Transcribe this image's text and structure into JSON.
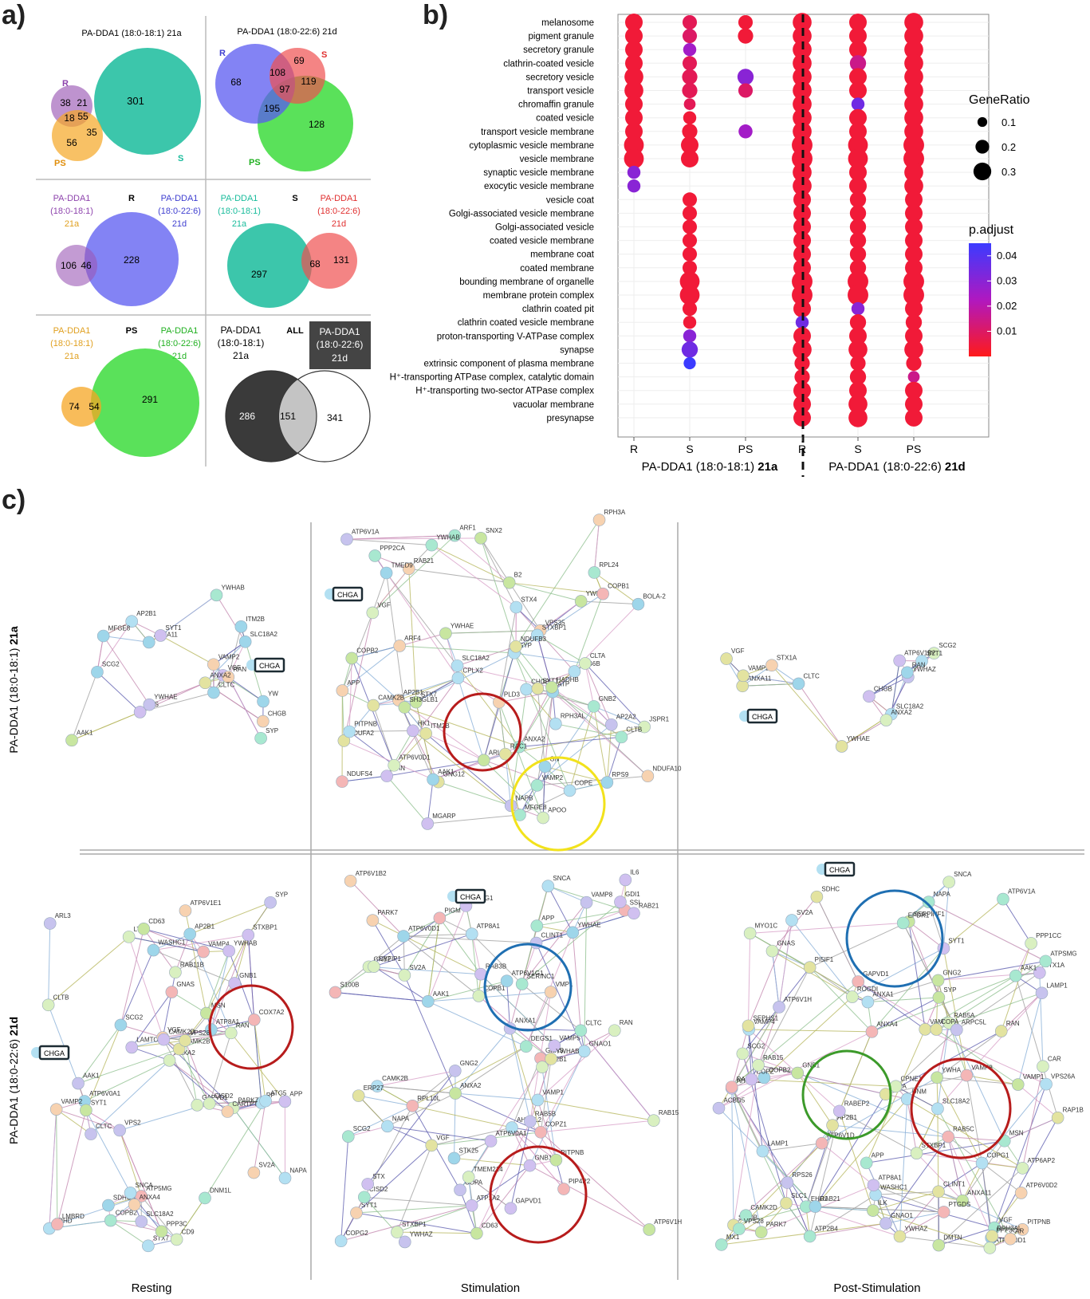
{
  "panels": {
    "a": "a)",
    "b": "b)",
    "c": "c)"
  },
  "panel_a": {
    "venn1": {
      "title": "PA-DDA1 (18:0-18:1) 21a",
      "R": "R",
      "S": "S",
      "PS": "PS",
      "n_R_only": "38",
      "n_RS": "21",
      "n_S_only": "301",
      "n_RPS": "18",
      "n_all": "55",
      "n_SPS": "35",
      "n_PS_only": "56"
    },
    "venn2": {
      "title": "PA-DDA1 (18:0-22:6) 21d",
      "R": "R",
      "S": "S",
      "PS": "PS",
      "n_R_only": "68",
      "n_RS": "108",
      "n_S_only": "69",
      "n_all": "97",
      "n_SPS": "119",
      "n_RPS": "195",
      "n_PS_only": "128"
    },
    "venn3": {
      "group": "R",
      "left_l1": "PA-DDA1",
      "left_l2": "(18:0-18:1)",
      "left_l3": "21a",
      "right_l1": "PA-DDA1",
      "right_l2": "(18:0-22:6)",
      "right_l3": "21d",
      "a": "106",
      "ab": "46",
      "b": "228"
    },
    "venn4": {
      "group": "S",
      "left_l1": "PA-DDA1",
      "left_l2": "(18:0-18:1)",
      "left_l3": "21a",
      "right_l1": "PA-DDA1",
      "right_l2": "(18:0-22:6)",
      "right_l3": "21d",
      "a": "297",
      "ab": "68",
      "b": "131"
    },
    "venn5": {
      "group": "PS",
      "left_l1": "PA-DDA1",
      "left_l2": "(18:0-18:1)",
      "left_l3": "21a",
      "right_l1": "PA-DDA1",
      "right_l2": "(18:0-22:6)",
      "right_l3": "21d",
      "a": "74",
      "ab": "54",
      "b": "291"
    },
    "venn6": {
      "group": "ALL",
      "left_l1": "PA-DDA1",
      "left_l2": "(18:0-18:1)",
      "left_l3": "21a",
      "right_l1": "PA-DDA1",
      "right_l2": "(18:0-22:6)",
      "right_l3": "21d",
      "a": "286",
      "ab": "151",
      "b": "341"
    }
  },
  "colors": {
    "R": "#9b59b6",
    "R2": "#5a5af0",
    "S": "#1abc9c",
    "S2": "#f05050",
    "PS": "#f5a623",
    "PS2": "#3ddc3d"
  },
  "chart_data": {
    "type": "scatter",
    "subtype": "dot-plot",
    "categories": [
      "melanosome",
      "pigment granule",
      "secretory granule",
      "clathrin-coated vesicle",
      "secretory vesicle",
      "transport vesicle",
      "chromaffin granule",
      "coated vesicle",
      "transport vesicle membrane",
      "cytoplasmic vesicle membrane",
      "vesicle membrane",
      "synaptic vesicle membrane",
      "exocytic vesicle membrane",
      "vesicle coat",
      "Golgi-associated vesicle membrane",
      "Golgi-associated vesicle",
      "coated vesicle membrane",
      "membrane coat",
      "coated membrane",
      "bounding membrane of organelle",
      "membrane protein complex",
      "clathrin coated pit",
      "clathrin coated vesicle membrane",
      "proton-transporting V-ATPase complex",
      "synapse",
      "extrinsic component of plasma membrane",
      "H⁺-transporting ATPase complex, catalytic domain",
      "H⁺-transporting two-sector ATPase complex",
      "vacuolar membrane",
      "presynapse"
    ],
    "x_ticks": [
      "R",
      "S",
      "PS",
      "R",
      "S",
      "PS"
    ],
    "group_21a": {
      "label_main": "PA-DDA1 (18:0-18:1) ",
      "label_bold": "21a"
    },
    "group_21d": {
      "label_main": "PA-DDA1 (18:0-22:6) ",
      "label_bold": "21d"
    },
    "legend": {
      "size_title": "GeneRatio",
      "size_labels": [
        "0.1",
        "0.2",
        "0.3"
      ],
      "size_values": [
        0.1,
        0.2,
        0.3
      ],
      "color_title": "p.adjust",
      "color_labels": [
        "0.04",
        "0.03",
        "0.02",
        "0.01"
      ],
      "color_values": [
        0.04,
        0.03,
        0.02,
        0.01
      ]
    },
    "points": [
      [
        0,
        0,
        0.25,
        0.004
      ],
      [
        0,
        1,
        0.18,
        0.008
      ],
      [
        0,
        2,
        0.18,
        0.004
      ],
      [
        0,
        3,
        0.28,
        0.004
      ],
      [
        0,
        4,
        0.25,
        0.004
      ],
      [
        0,
        5,
        0.28,
        0.004
      ],
      [
        1,
        0,
        0.25,
        0.004
      ],
      [
        1,
        1,
        0.18,
        0.01
      ],
      [
        1,
        2,
        0.2,
        0.004
      ],
      [
        1,
        3,
        0.28,
        0.004
      ],
      [
        1,
        4,
        0.25,
        0.004
      ],
      [
        1,
        5,
        0.28,
        0.004
      ],
      [
        2,
        0,
        0.25,
        0.004
      ],
      [
        2,
        1,
        0.15,
        0.025
      ],
      [
        2,
        3,
        0.28,
        0.004
      ],
      [
        2,
        4,
        0.25,
        0.004
      ],
      [
        2,
        5,
        0.28,
        0.004
      ],
      [
        3,
        0,
        0.25,
        0.004
      ],
      [
        3,
        1,
        0.18,
        0.008
      ],
      [
        3,
        3,
        0.28,
        0.004
      ],
      [
        3,
        4,
        0.22,
        0.015
      ],
      [
        3,
        5,
        0.28,
        0.004
      ],
      [
        4,
        0,
        0.28,
        0.004
      ],
      [
        4,
        1,
        0.2,
        0.008
      ],
      [
        4,
        2,
        0.22,
        0.03
      ],
      [
        4,
        3,
        0.28,
        0.004
      ],
      [
        4,
        4,
        0.25,
        0.004
      ],
      [
        4,
        5,
        0.28,
        0.004
      ],
      [
        5,
        0,
        0.28,
        0.004
      ],
      [
        5,
        1,
        0.2,
        0.008
      ],
      [
        5,
        2,
        0.18,
        0.01
      ],
      [
        5,
        3,
        0.28,
        0.004
      ],
      [
        5,
        4,
        0.25,
        0.004
      ],
      [
        5,
        5,
        0.28,
        0.004
      ],
      [
        6,
        0,
        0.25,
        0.004
      ],
      [
        6,
        1,
        0.12,
        0.008
      ],
      [
        6,
        3,
        0.28,
        0.004
      ],
      [
        6,
        4,
        0.15,
        0.035
      ],
      [
        6,
        5,
        0.28,
        0.004
      ],
      [
        7,
        0,
        0.25,
        0.004
      ],
      [
        7,
        1,
        0.15,
        0.004
      ],
      [
        7,
        3,
        0.28,
        0.004
      ],
      [
        7,
        4,
        0.25,
        0.004
      ],
      [
        7,
        5,
        0.28,
        0.004
      ],
      [
        8,
        0,
        0.25,
        0.004
      ],
      [
        8,
        1,
        0.2,
        0.004
      ],
      [
        8,
        2,
        0.17,
        0.025
      ],
      [
        8,
        3,
        0.28,
        0.004
      ],
      [
        8,
        4,
        0.25,
        0.004
      ],
      [
        8,
        5,
        0.28,
        0.004
      ],
      [
        9,
        0,
        0.3,
        0.004
      ],
      [
        9,
        1,
        0.25,
        0.004
      ],
      [
        9,
        3,
        0.32,
        0.004
      ],
      [
        9,
        4,
        0.3,
        0.004
      ],
      [
        9,
        5,
        0.32,
        0.004
      ],
      [
        10,
        0,
        0.3,
        0.004
      ],
      [
        10,
        1,
        0.25,
        0.004
      ],
      [
        10,
        3,
        0.32,
        0.004
      ],
      [
        10,
        4,
        0.3,
        0.004
      ],
      [
        10,
        5,
        0.32,
        0.004
      ],
      [
        11,
        0,
        0.15,
        0.03
      ],
      [
        11,
        3,
        0.28,
        0.004
      ],
      [
        11,
        4,
        0.25,
        0.004
      ],
      [
        11,
        5,
        0.28,
        0.004
      ],
      [
        12,
        0,
        0.15,
        0.03
      ],
      [
        12,
        3,
        0.28,
        0.004
      ],
      [
        12,
        4,
        0.25,
        0.004
      ],
      [
        12,
        5,
        0.28,
        0.004
      ],
      [
        13,
        1,
        0.18,
        0.004
      ],
      [
        13,
        3,
        0.25,
        0.004
      ],
      [
        13,
        4,
        0.22,
        0.004
      ],
      [
        13,
        5,
        0.25,
        0.004
      ],
      [
        14,
        1,
        0.18,
        0.004
      ],
      [
        14,
        3,
        0.25,
        0.004
      ],
      [
        14,
        4,
        0.22,
        0.004
      ],
      [
        14,
        5,
        0.25,
        0.004
      ],
      [
        15,
        1,
        0.18,
        0.004
      ],
      [
        15,
        3,
        0.25,
        0.004
      ],
      [
        15,
        4,
        0.22,
        0.004
      ],
      [
        15,
        5,
        0.25,
        0.004
      ],
      [
        16,
        1,
        0.18,
        0.004
      ],
      [
        16,
        3,
        0.25,
        0.004
      ],
      [
        16,
        4,
        0.22,
        0.004
      ],
      [
        16,
        5,
        0.25,
        0.004
      ],
      [
        17,
        1,
        0.18,
        0.004
      ],
      [
        17,
        3,
        0.25,
        0.004
      ],
      [
        17,
        4,
        0.22,
        0.004
      ],
      [
        17,
        5,
        0.25,
        0.004
      ],
      [
        18,
        1,
        0.18,
        0.004
      ],
      [
        18,
        3,
        0.25,
        0.004
      ],
      [
        18,
        4,
        0.22,
        0.004
      ],
      [
        18,
        5,
        0.25,
        0.004
      ],
      [
        19,
        1,
        0.3,
        0.004
      ],
      [
        19,
        3,
        0.32,
        0.004
      ],
      [
        19,
        4,
        0.32,
        0.004
      ],
      [
        19,
        5,
        0.32,
        0.004
      ],
      [
        20,
        1,
        0.3,
        0.004
      ],
      [
        20,
        3,
        0.32,
        0.004
      ],
      [
        20,
        4,
        0.32,
        0.004
      ],
      [
        20,
        5,
        0.32,
        0.004
      ],
      [
        21,
        1,
        0.18,
        0.004
      ],
      [
        21,
        3,
        0.25,
        0.004
      ],
      [
        21,
        4,
        0.15,
        0.03
      ],
      [
        21,
        5,
        0.25,
        0.004
      ],
      [
        22,
        1,
        0.15,
        0.004
      ],
      [
        22,
        3,
        0.15,
        0.035
      ],
      [
        22,
        4,
        0.22,
        0.004
      ],
      [
        22,
        5,
        0.22,
        0.004
      ],
      [
        23,
        1,
        0.15,
        0.03
      ],
      [
        23,
        3,
        0.25,
        0.004
      ],
      [
        23,
        4,
        0.25,
        0.004
      ],
      [
        23,
        5,
        0.25,
        0.004
      ],
      [
        24,
        1,
        0.22,
        0.035
      ],
      [
        24,
        3,
        0.28,
        0.004
      ],
      [
        24,
        4,
        0.28,
        0.004
      ],
      [
        24,
        5,
        0.28,
        0.004
      ],
      [
        25,
        1,
        0.13,
        0.045
      ],
      [
        25,
        3,
        0.2,
        0.004
      ],
      [
        25,
        4,
        0.2,
        0.004
      ],
      [
        25,
        5,
        0.2,
        0.004
      ],
      [
        26,
        3,
        0.2,
        0.004
      ],
      [
        26,
        4,
        0.22,
        0.004
      ],
      [
        26,
        5,
        0.12,
        0.015
      ],
      [
        27,
        3,
        0.25,
        0.004
      ],
      [
        27,
        4,
        0.25,
        0.004
      ],
      [
        27,
        5,
        0.25,
        0.004
      ],
      [
        28,
        3,
        0.25,
        0.004
      ],
      [
        28,
        4,
        0.28,
        0.004
      ],
      [
        28,
        5,
        0.25,
        0.004
      ],
      [
        29,
        3,
        0.25,
        0.004
      ],
      [
        29,
        4,
        0.28,
        0.004
      ],
      [
        29,
        5,
        0.25,
        0.004
      ]
    ]
  },
  "panel_c": {
    "row_21a": {
      "label_main": "PA-DDA1 (18:0-18:1) ",
      "label_bold": "21a"
    },
    "row_21d": {
      "label_main": "PA-DDA1 (18:0-22:6) ",
      "label_bold": "21d"
    },
    "col_labels": [
      "Resting",
      "Stimulation",
      "Post-Stimulation"
    ],
    "chga": "CHGA",
    "net_a_rest": [
      "AAK1",
      "AP2B1",
      "VGF",
      "HGS",
      "RAN",
      "CLTC",
      "ITM2B",
      "YWHAE",
      "YWHAB",
      "VAMP2",
      "CHGB",
      "SCG2",
      "YW",
      "ANXA2",
      "SYP",
      "ANXA11",
      "SLC18A2",
      "MFGE8",
      "SYT1"
    ],
    "net_a_stim": [
      "JSPR1",
      "ITM2B",
      "GNG12",
      "RAN",
      "GN",
      "ARL3",
      "RPH3A",
      "RAB21",
      "APP",
      "GNB2",
      "RPS9",
      "RPL24",
      "SYP",
      "CPLX2",
      "RAB6B",
      "SLC18A2",
      "HK1",
      "YWHAZ",
      "STX7",
      "NAPB",
      "STX4",
      "CHGB",
      "SYT1",
      "TMED9",
      "VGF",
      "VAMP2",
      "VPS35",
      "YWHAE",
      "PPP2CA",
      "COPB2",
      "ARF1",
      "STXBP1",
      "SNX2",
      "COPB1",
      "YWHAB",
      "ARF4",
      "AP2B1",
      "ANXA2",
      "CLTA",
      "AP2A2",
      "CAMK2B",
      "COPE",
      "MFGE8",
      "MGARP",
      "ATP6V1A",
      "AAK1",
      "CLTB",
      "B2",
      "RAC1",
      "ATP6V0D1",
      "ATP",
      "BOLA-2",
      "NDUFA2",
      "PLD3",
      "RPH3AL",
      "PITPNB",
      "NDUFA10",
      "HADHB",
      "SH3GLB1",
      "NDUFB3",
      "NDUFS4",
      "APOO"
    ],
    "net_a_post": [
      "SCG2",
      "SYT1",
      "SLC18A2",
      "ANXA11",
      "ATP6V1B2",
      "VGF",
      "CHGB",
      "VAMP2",
      "CLTC",
      "YWHAE",
      "STX1A",
      "YWHAZ",
      "RAN",
      "ANXA2"
    ],
    "net_d_rest": [
      "SDHD",
      "SDHC",
      "ATP5MG",
      "ATP8A1",
      "COX7A2",
      "ATP6V0A1",
      "STX7",
      "RP",
      "ATG5",
      "STXBP1",
      "NAPA",
      "ATP6V1E1",
      "SV2A",
      "SNCA",
      "SYT1",
      "VAMP4",
      "SLC18A2",
      "PARK7",
      "COPB2",
      "VPS2",
      "SYP",
      "VAMP2",
      "LAMTOR1",
      "DNM1L",
      "SCG2",
      "AP2B1",
      "CLTC",
      "CLTB",
      "WASHC1",
      "VGF",
      "APP",
      "RAB11B",
      "GNAS",
      "GNB1",
      "YWHAB",
      "LMBRD",
      "AAK1",
      "GAPVD1",
      "ANXA2",
      "LTF",
      "PPP3C",
      "CAMK2D",
      "CISD2",
      "CD63",
      "CAMK2B",
      "ARL3",
      "CD9",
      "CARTPT",
      "RAN",
      "MSN",
      "VPS28",
      "ANXA4"
    ],
    "net_d_stim": [
      "RAB3B",
      "SCG2",
      "SYT1",
      "STXBP1",
      "PARK7",
      "SNCA",
      "VAMP1",
      "SV2A",
      "CISD2",
      "GNAS",
      "VGF",
      "STX",
      "RPL10L",
      "GNG2",
      "VAMP8",
      "VAMP5",
      "STK25",
      "AHCYL2",
      "GNAO1",
      "AP2B1",
      "S100B",
      "APP",
      "GNB2",
      "SERINC1",
      "NAPA",
      "COPZ1",
      "GNB1",
      "CD63",
      "CLINT1",
      "AAK1",
      "ANXA1",
      "CLTC",
      "COPA",
      "COPG2",
      "COPB1",
      "SSI",
      "YWHAZ",
      "YWHAB",
      "ANXA2",
      "RAB5B",
      "COPG1",
      "CAMK2B",
      "YWHAE",
      "GDI1",
      "GAPVD1",
      "VMP1",
      "PIP4P2",
      "RAB15",
      "RAB21",
      "PIGM",
      "PITPNB",
      "TMEM214",
      "CYFIP1",
      "IL6",
      "ATP6V0D1",
      "ATP6V1H",
      "DEGS1",
      "ATP8A1",
      "RAN",
      "ATP6V1G1",
      "ERP27",
      "ATP6V1B2",
      "ATP6V0A1",
      "ATP1A2"
    ],
    "net_d_post": [
      "SCG2",
      "SV2A",
      "AHCYL2",
      "ATP2B4",
      "RPS26",
      "S100B",
      "SYT1",
      "SLC18A2",
      "GNAO1",
      "GNAS",
      "STX1A",
      "VGF",
      "VAMP1",
      "STXBP1",
      "ILK",
      "GNG2",
      "SYP",
      "RAB6B",
      "CAR",
      "GNB1",
      "VAMP2",
      "SNCA",
      "VAMP4",
      "ACBD5",
      "CAMK2D",
      "RAP1B",
      "APP",
      "VAMP8",
      "PARK7",
      "PPP3CA",
      "PPP1CC",
      "YWHAZ",
      "AP2B1",
      "NAPA",
      "DNM",
      "VAPA",
      "PITPNB",
      "MSN",
      "YWHA",
      "CLINT1",
      "PI5IF1",
      "ANXA11",
      "ANXA1",
      "AAK1",
      "LAMP1",
      "SDHC",
      "COPB2",
      "ATPSMG",
      "DMTN",
      "ANXA4",
      "COPZ",
      "ATP6V1D",
      "RAB5A",
      "LAMP1",
      "SLC1",
      "ATP6V0D1",
      "ATP6V0D2",
      "COPA",
      "ATP6V1H",
      "COPG1",
      "ATP6V1A",
      "ATP6AP2",
      "CPNE1",
      "VPS28",
      "RAB5C",
      "EHD1",
      "GAPVD1",
      "SERPINF1",
      "RAB15",
      "WASHC1",
      "EPDR1",
      "ATP8A1",
      "RAB21",
      "VPS26A",
      "ROGDI",
      "ARPC5L",
      "MYO1C",
      "PTGDS",
      "RABEP2",
      "MX1",
      "RPH3AL",
      "RAN",
      "SEPHS1",
      "AR"
    ]
  }
}
